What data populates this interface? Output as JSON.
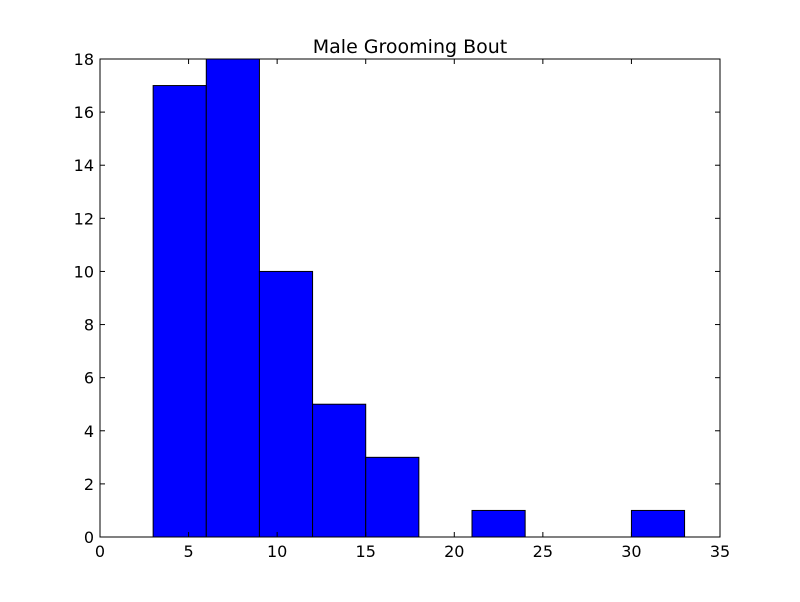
{
  "chart_data": {
    "type": "bar",
    "title": "Male Grooming Bout",
    "xlabel": "",
    "ylabel": "",
    "xlim": [
      0,
      35
    ],
    "ylim": [
      0,
      18
    ],
    "xticks": [
      0,
      5,
      10,
      15,
      20,
      25,
      30,
      35
    ],
    "yticks": [
      0,
      2,
      4,
      6,
      8,
      10,
      12,
      14,
      16,
      18
    ],
    "bin_edges": [
      3.0,
      6.0,
      9.0,
      12.0,
      15.0,
      18.0,
      21.0,
      24.0,
      27.0,
      30.0,
      33.0
    ],
    "values": [
      17,
      18,
      10,
      5,
      3,
      0,
      1,
      0,
      0,
      1
    ],
    "bar_color": "#0000ff",
    "edge_color": "#000000",
    "grid": false
  }
}
